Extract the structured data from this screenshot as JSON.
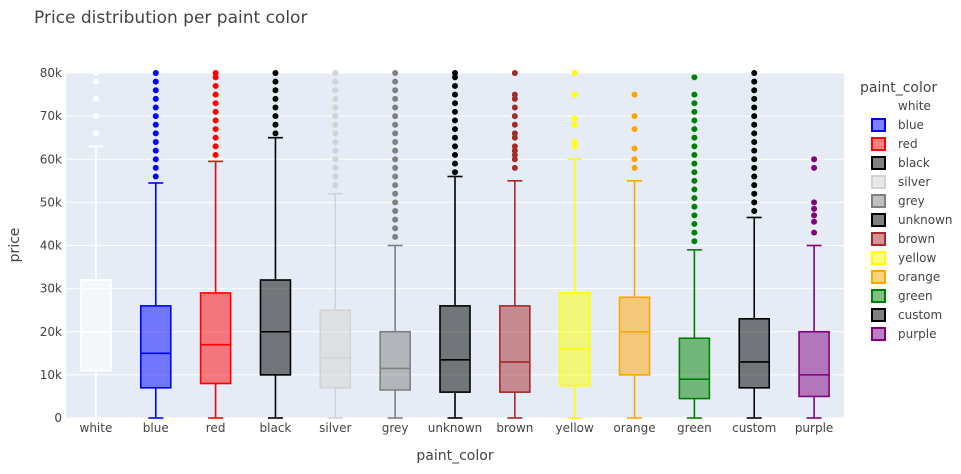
{
  "chart_data": {
    "type": "box",
    "title": "Price distribution per paint color",
    "xlabel": "paint_color",
    "ylabel": "price",
    "ylim": [
      0,
      80000
    ],
    "y_ticks": [
      0,
      10000,
      20000,
      30000,
      40000,
      50000,
      60000,
      70000,
      80000
    ],
    "y_tick_labels": [
      "0",
      "10k",
      "20k",
      "30k",
      "40k",
      "50k",
      "60k",
      "70k",
      "80k"
    ],
    "grid": true,
    "legend": {
      "title": "paint_color",
      "placement": "right"
    },
    "categories": [
      "white",
      "blue",
      "red",
      "black",
      "silver",
      "grey",
      "unknown",
      "brown",
      "yellow",
      "orange",
      "green",
      "custom",
      "purple"
    ],
    "series": [
      {
        "name": "white",
        "color": "#ffffff",
        "q1": 11000,
        "median": 20000,
        "q3": 32000,
        "lower_fence": 0,
        "upper_fence": 63000,
        "outliers": [
          66000,
          70000,
          74000,
          78000,
          80000
        ]
      },
      {
        "name": "blue",
        "color": "#0000ff",
        "q1": 7000,
        "median": 15000,
        "q3": 26000,
        "lower_fence": 0,
        "upper_fence": 54500,
        "outliers": [
          56000,
          58000,
          60000,
          62000,
          64000,
          66000,
          68000,
          70000,
          72000,
          74000,
          76000,
          78000,
          80000
        ]
      },
      {
        "name": "red",
        "color": "#ff0000",
        "q1": 8000,
        "median": 17000,
        "q3": 29000,
        "lower_fence": 0,
        "upper_fence": 59500,
        "outliers": [
          61000,
          63000,
          65000,
          67000,
          69000,
          71000,
          73000,
          75000,
          77000,
          79000,
          80000
        ]
      },
      {
        "name": "black",
        "color": "#000000",
        "q1": 10000,
        "median": 20000,
        "q3": 32000,
        "lower_fence": 0,
        "upper_fence": 65000,
        "outliers": [
          66000,
          68000,
          70000,
          72000,
          74000,
          76000,
          78000,
          80000
        ]
      },
      {
        "name": "silver",
        "color": "#d3d3d3",
        "q1": 7000,
        "median": 14000,
        "q3": 25000,
        "lower_fence": 0,
        "upper_fence": 52000,
        "outliers": [
          54000,
          56000,
          58000,
          60000,
          62000,
          64000,
          66000,
          68000,
          70000,
          72000,
          74000,
          76000,
          78000,
          80000
        ]
      },
      {
        "name": "grey",
        "color": "#808080",
        "q1": 6500,
        "median": 11500,
        "q3": 20000,
        "lower_fence": 0,
        "upper_fence": 40000,
        "outliers": [
          42000,
          44000,
          46000,
          48000,
          50000,
          52000,
          54000,
          56000,
          58000,
          60000,
          62000,
          64000,
          66000,
          68000,
          70000,
          72000,
          74000,
          76000,
          78000,
          80000
        ]
      },
      {
        "name": "unknown",
        "color": "#000000",
        "q1": 6000,
        "median": 13500,
        "q3": 26000,
        "lower_fence": 0,
        "upper_fence": 56000,
        "outliers": [
          57000,
          59000,
          61000,
          63000,
          65000,
          67000,
          69000,
          71000,
          73000,
          75000,
          77000,
          79000,
          80000
        ]
      },
      {
        "name": "brown",
        "color": "#a52a2a",
        "q1": 6000,
        "median": 13000,
        "q3": 26000,
        "lower_fence": 0,
        "upper_fence": 55000,
        "outliers": [
          58000,
          60000,
          61000,
          62000,
          63000,
          65000,
          66000,
          68000,
          70000,
          72000,
          74000,
          75000,
          80000
        ]
      },
      {
        "name": "yellow",
        "color": "#ffff00",
        "q1": 7500,
        "median": 16000,
        "q3": 29000,
        "lower_fence": 0,
        "upper_fence": 60000,
        "outliers": [
          63000,
          64000,
          68000,
          69500,
          75000,
          80000
        ]
      },
      {
        "name": "orange",
        "color": "#ffa500",
        "q1": 10000,
        "median": 20000,
        "q3": 28000,
        "lower_fence": 0,
        "upper_fence": 55000,
        "outliers": [
          58000,
          60000,
          62500,
          67000,
          70000,
          75000
        ]
      },
      {
        "name": "green",
        "color": "#008000",
        "q1": 4500,
        "median": 9000,
        "q3": 18500,
        "lower_fence": 0,
        "upper_fence": 39000,
        "outliers": [
          41000,
          43000,
          45000,
          47000,
          49000,
          51000,
          53000,
          55000,
          57000,
          59000,
          61000,
          63000,
          65000,
          67000,
          69000,
          71000,
          73000,
          75000,
          79000
        ]
      },
      {
        "name": "custom",
        "color": "#000000",
        "q1": 7000,
        "median": 13000,
        "q3": 23000,
        "lower_fence": 0,
        "upper_fence": 46500,
        "outliers": [
          48000,
          50000,
          52000,
          54000,
          56000,
          58000,
          60000,
          62000,
          64000,
          66000,
          68000,
          70000,
          72000,
          74000,
          76000,
          78000,
          80000
        ]
      },
      {
        "name": "purple",
        "color": "#800080",
        "q1": 5000,
        "median": 10000,
        "q3": 20000,
        "lower_fence": 0,
        "upper_fence": 40000,
        "outliers": [
          43000,
          45500,
          47000,
          48500,
          50000,
          58000,
          60000
        ]
      }
    ]
  }
}
